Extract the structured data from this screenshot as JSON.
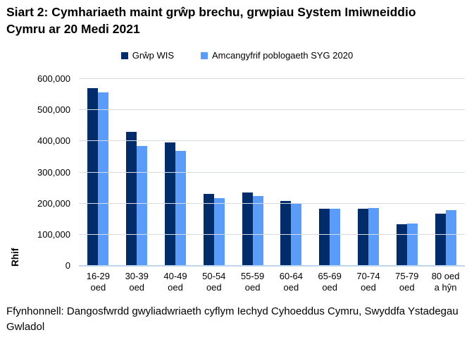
{
  "header": {
    "title": "Siart 2: Cymhariaeth maint grŵp brechu, grwpiau System Imiwneiddio Cymru ar 20 Medi 2021"
  },
  "legend": {
    "items": [
      {
        "label": "Grŵp WIS",
        "color": "#002d6a"
      },
      {
        "label": "Amcangyfrif poblogaeth SYG 2020",
        "color": "#5b9cf8"
      }
    ]
  },
  "footer": {
    "source": "Ffynhonnell: Dangosfwrdd gwyliadwriaeth cyflym Iechyd Cyhoeddus Cymru, Swyddfa Ystadegau Gwladol"
  },
  "chart_data": {
    "type": "bar",
    "title": "Siart 2: Cymhariaeth maint grŵp brechu, grwpiau System Imiwneiddio Cymru ar 20 Medi 2021",
    "xlabel": "",
    "ylabel": "Rhif",
    "ylim": [
      0,
      600000
    ],
    "grid": true,
    "legend_position": "top",
    "yticks": [
      {
        "value": 600000,
        "label": "600,000"
      },
      {
        "value": 500000,
        "label": "500,000"
      },
      {
        "value": 400000,
        "label": "400,000"
      },
      {
        "value": 300000,
        "label": "300,000"
      },
      {
        "value": 200000,
        "label": "200,000"
      },
      {
        "value": 100000,
        "label": "100,000"
      },
      {
        "value": 0,
        "label": "0"
      }
    ],
    "categories": [
      [
        "16-29",
        "oed"
      ],
      [
        "30-39",
        "oed"
      ],
      [
        "40-49",
        "oed"
      ],
      [
        "50-54",
        "oed"
      ],
      [
        "55-59",
        "oed"
      ],
      [
        "60-64",
        "oed"
      ],
      [
        "65-69",
        "oed"
      ],
      [
        "70-74",
        "oed"
      ],
      [
        "75-79",
        "oed"
      ],
      [
        "80 oed",
        "a hŷn"
      ]
    ],
    "series": [
      {
        "name": "Grŵp WIS",
        "color": "#002d6a",
        "values": [
          568000,
          427000,
          395000,
          228000,
          233000,
          205000,
          180000,
          182000,
          131000,
          166000
        ]
      },
      {
        "name": "Amcangyfrif poblogaeth SYG 2020",
        "color": "#5b9cf8",
        "values": [
          554000,
          383000,
          366000,
          216000,
          221000,
          196000,
          181000,
          183000,
          133000,
          177000
        ]
      }
    ]
  },
  "colors": {
    "gridline": "#d6dae3",
    "axis_line": "#bdd7ee",
    "background": "#ffffff",
    "text": "#000000"
  }
}
